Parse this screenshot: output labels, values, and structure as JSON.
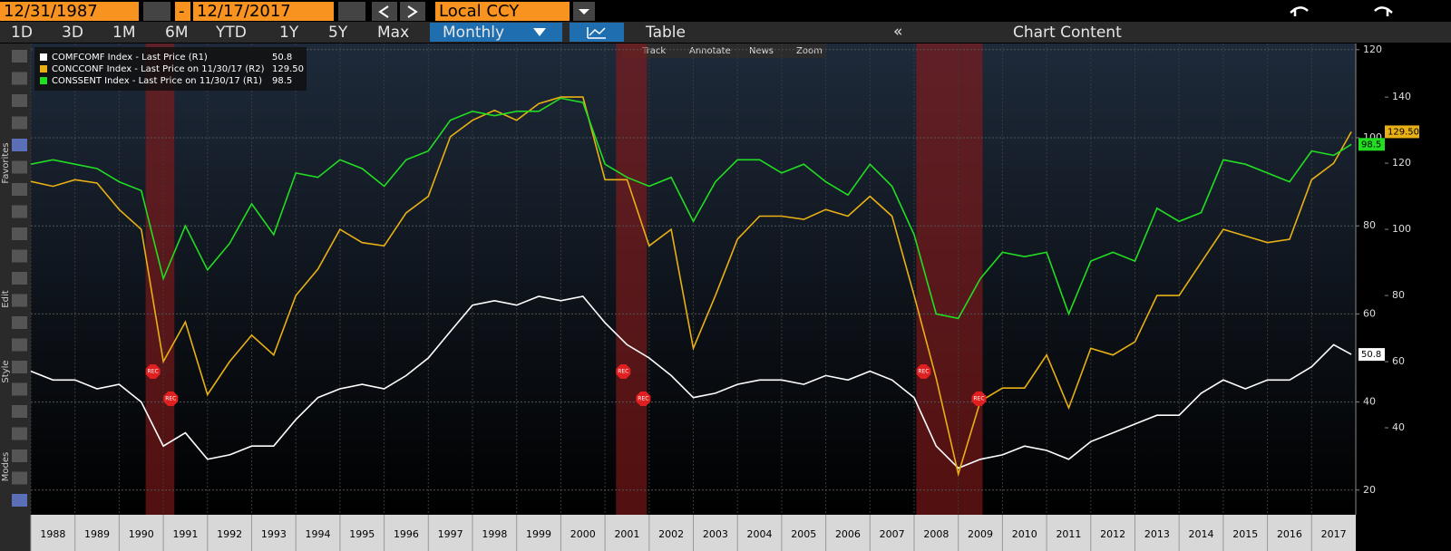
{
  "toolbar": {
    "start_date": "12/31/1987",
    "dash": "-",
    "end_date": "12/17/2017",
    "currency": "Local CCY",
    "ranges": [
      "1D",
      "3D",
      "1M",
      "6M",
      "YTD",
      "1Y",
      "5Y",
      "Max"
    ],
    "frequency": "Monthly",
    "table": "Table",
    "chart_content": "Chart Content",
    "chart_tools": [
      "Track",
      "Annotate",
      "News",
      "Zoom"
    ],
    "side_labels": [
      "Favorites",
      "Edit",
      "Style",
      "Modes"
    ]
  },
  "chart_data": {
    "type": "line",
    "x": [
      1988,
      1988.5,
      1989,
      1989.5,
      1990,
      1990.5,
      1991,
      1991.5,
      1992,
      1992.5,
      1993,
      1993.5,
      1994,
      1994.5,
      1995,
      1995.5,
      1996,
      1996.5,
      1997,
      1997.5,
      1998,
      1998.5,
      1999,
      1999.5,
      2000,
      2000.5,
      2001,
      2001.5,
      2002,
      2002.5,
      2003,
      2003.5,
      2004,
      2004.5,
      2005,
      2005.5,
      2006,
      2006.5,
      2007,
      2007.5,
      2008,
      2008.5,
      2009,
      2009.5,
      2010,
      2010.5,
      2011,
      2011.5,
      2012,
      2012.5,
      2013,
      2013.5,
      2014,
      2014.5,
      2015,
      2015.5,
      2016,
      2016.5,
      2017,
      2017.5,
      2017.9
    ],
    "xlim": [
      1988,
      2018
    ],
    "xticks": [
      1988,
      1989,
      1990,
      1991,
      1992,
      1993,
      1994,
      1995,
      1996,
      1997,
      1998,
      1999,
      2000,
      2001,
      2002,
      2003,
      2004,
      2005,
      2006,
      2007,
      2008,
      2009,
      2010,
      2011,
      2012,
      2013,
      2014,
      2015,
      2016,
      2017
    ],
    "ylim": [
      14.4,
      121.4
    ],
    "yticks": [
      20,
      40,
      60,
      80,
      100,
      120
    ],
    "y2lim": [
      13.7,
      156.2
    ],
    "y2ticks": [
      40,
      60,
      80,
      100,
      120,
      140
    ],
    "grid": true,
    "legend": "top-left",
    "recessions": [
      {
        "start": 1990.6,
        "end": 1991.25
      },
      {
        "start": 2001.25,
        "end": 2001.95
      },
      {
        "start": 2008.05,
        "end": 2009.55
      }
    ],
    "rec_label": "REC",
    "series": [
      {
        "name": "COMFCOMF Index - Last Price (R1)",
        "color": "#ffffff",
        "axis": "y",
        "values": [
          47,
          45,
          45,
          43,
          44,
          40,
          30,
          33,
          27,
          28,
          30,
          30,
          36,
          41,
          43,
          44,
          43,
          46,
          50,
          56,
          62,
          63,
          62,
          64,
          63,
          64,
          58,
          53,
          50,
          46,
          41,
          42,
          44,
          45,
          45,
          44,
          46,
          45,
          47,
          45,
          41,
          30,
          25,
          27,
          28,
          30,
          29,
          27,
          31,
          33,
          35,
          37,
          37,
          42,
          45,
          43,
          45,
          45,
          48,
          53,
          50.8
        ]
      },
      {
        "name": "CONCCONF Index - Last Price on 11/30/17 (R2)",
        "color": "#e8b015",
        "axis": "y2",
        "values": [
          114.5,
          113,
          115,
          114,
          106,
          100,
          60,
          72,
          50,
          60,
          68,
          62,
          80,
          88,
          100,
          96,
          95,
          105,
          110,
          128,
          133,
          136,
          133,
          138,
          140,
          140,
          115,
          115,
          95,
          100,
          64,
          80,
          97,
          104,
          104,
          103,
          106,
          104,
          110,
          104,
          80,
          55,
          26,
          48,
          52,
          52,
          62,
          46,
          64,
          62,
          66,
          80,
          80,
          90,
          100,
          98,
          96,
          97,
          115,
          120,
          129.5
        ],
        "value_labels": [
          null,
          null,
          null,
          null,
          null,
          null,
          null,
          null,
          null,
          null,
          null,
          null,
          null,
          null,
          null,
          null,
          null,
          null,
          null,
          null,
          null,
          null,
          null,
          null,
          null,
          null,
          null,
          null,
          null,
          null,
          null,
          null,
          null,
          null,
          null,
          null,
          null,
          null,
          null,
          null,
          null,
          null,
          null,
          null,
          null,
          null,
          null,
          null,
          null,
          null,
          null,
          null,
          null,
          null,
          null,
          null,
          null,
          null,
          null,
          null,
          "129.50"
        ]
      },
      {
        "name": "CONSSENT Index - Last Price on 11/30/17 (R1)",
        "color": "#22dd22",
        "axis": "y",
        "values": [
          94,
          95,
          94,
          93,
          90,
          88,
          68,
          80,
          70,
          76,
          85,
          78,
          92,
          91,
          95,
          93,
          89,
          95,
          97,
          104,
          106,
          105,
          106,
          106,
          109,
          108,
          94,
          91,
          89,
          91,
          81,
          90,
          95,
          95,
          92,
          94,
          90,
          87,
          94,
          89,
          78,
          60,
          59,
          68,
          74,
          73,
          74,
          60,
          72,
          74,
          72,
          84,
          81,
          83,
          95,
          94,
          92,
          90,
          97,
          96,
          98.5
        ]
      }
    ]
  }
}
